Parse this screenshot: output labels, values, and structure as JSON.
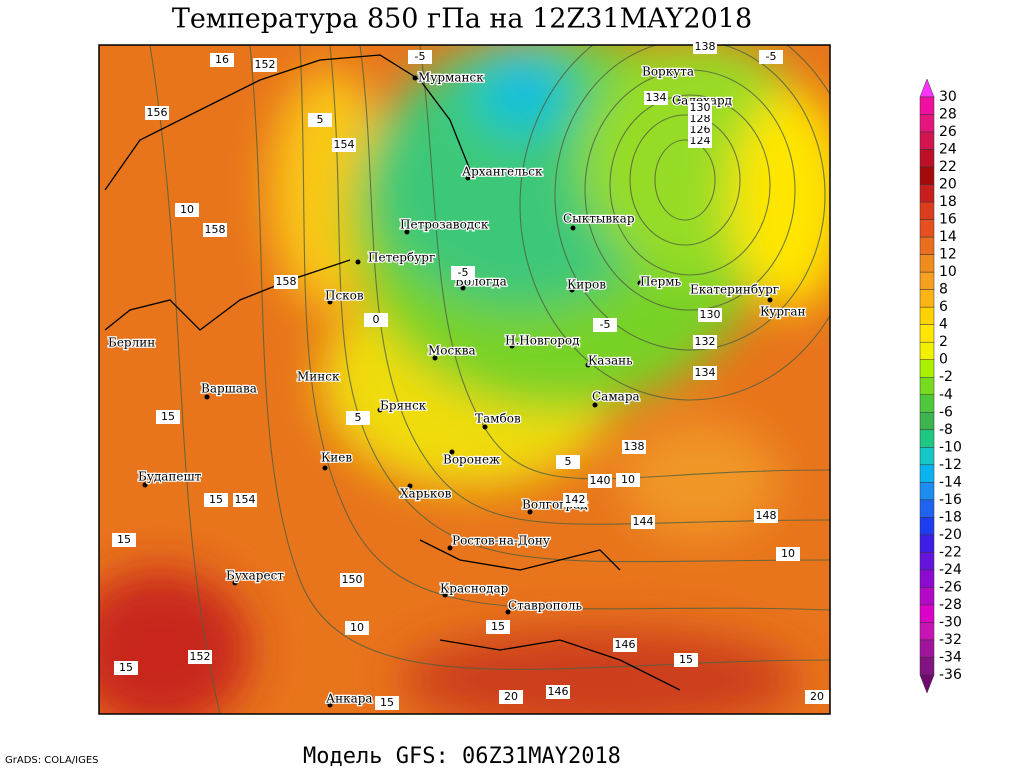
{
  "header": {
    "title": "Температура 850 гПа на 12Z31MAY2018"
  },
  "footer": {
    "model": "Модель GFS: 06Z31MAY2018",
    "credit": "GrADS: COLA/IGES"
  },
  "cities": [
    "Мурманск",
    "Воркута",
    "Салехард",
    "Архангельск",
    "Петрозаводск",
    "Сыктывкар",
    "Петербург",
    "Вологда",
    "Псков",
    "Киров",
    "Пермь",
    "Екатеринбург",
    "Курган",
    "Берлин",
    "Москва",
    "Н.Новгород",
    "Казань",
    "Минск",
    "Варшава",
    "Самара",
    "Брянск",
    "Тамбов",
    "Воронеж",
    "Киев",
    "Будапешт",
    "Харьков",
    "Волгоград",
    "Ростов-на-Дону",
    "Бухарест",
    "Краснодар",
    "Ставрополь",
    "Анкара"
  ],
  "contour_labels": [
    152,
    156,
    154,
    158,
    158,
    154,
    150,
    152,
    146,
    146,
    148,
    144,
    142,
    140,
    138,
    134,
    132,
    130,
    124,
    126,
    128,
    130,
    134,
    138,
    -5,
    -5,
    -5,
    -5,
    0,
    5,
    5,
    5,
    10,
    10,
    10,
    10,
    15,
    15,
    15,
    15,
    15,
    15,
    15,
    20,
    20,
    16
  ],
  "colorbar": {
    "labels": [
      30,
      28,
      26,
      24,
      22,
      20,
      18,
      16,
      14,
      12,
      10,
      8,
      6,
      4,
      2,
      0,
      -2,
      -4,
      -6,
      -8,
      -10,
      -12,
      -14,
      -16,
      -18,
      -20,
      -22,
      -24,
      -26,
      -28,
      -30,
      -32,
      -34,
      -36
    ],
    "colors": [
      "#ff33ff",
      "#f00fa0",
      "#e6147d",
      "#d21450",
      "#be0f28",
      "#a50a0a",
      "#c81e1e",
      "#dc3c1e",
      "#e6501e",
      "#eb6e1e",
      "#f08c1e",
      "#f5a01e",
      "#fab414",
      "#ffd200",
      "#ffe600",
      "#f0f000",
      "#aaf000",
      "#78dc1e",
      "#50c83c",
      "#3cb450",
      "#1ec882",
      "#14c8c8",
      "#0ab4f0",
      "#1e8cf0",
      "#1e64f0",
      "#1e3cf0",
      "#3c1ee6",
      "#6414dc",
      "#8c0ad2",
      "#b40ac8",
      "#dc00c8",
      "#c814b4",
      "#a0149b",
      "#821482",
      "#6e0a6e"
    ]
  }
}
